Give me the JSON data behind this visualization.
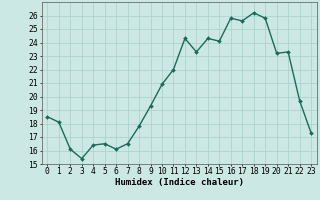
{
  "x": [
    0,
    1,
    2,
    3,
    4,
    5,
    6,
    7,
    8,
    9,
    10,
    11,
    12,
    13,
    14,
    15,
    16,
    17,
    18,
    19,
    20,
    21,
    22,
    23
  ],
  "y": [
    18.5,
    18.1,
    16.1,
    15.4,
    16.4,
    16.5,
    16.1,
    16.5,
    17.8,
    19.3,
    20.9,
    22.0,
    24.3,
    23.3,
    24.3,
    24.1,
    25.8,
    25.6,
    26.2,
    25.8,
    23.2,
    23.3,
    19.7,
    17.3
  ],
  "line_color": "#1a6b5a",
  "marker": "D",
  "marker_size": 2.0,
  "linewidth": 1.0,
  "xlabel": "Humidex (Indice chaleur)",
  "ylabel": "",
  "xlim": [
    -0.5,
    23.5
  ],
  "ylim": [
    15,
    27
  ],
  "yticks": [
    15,
    16,
    17,
    18,
    19,
    20,
    21,
    22,
    23,
    24,
    25,
    26
  ],
  "xticks": [
    0,
    1,
    2,
    3,
    4,
    5,
    6,
    7,
    8,
    9,
    10,
    11,
    12,
    13,
    14,
    15,
    16,
    17,
    18,
    19,
    20,
    21,
    22,
    23
  ],
  "bg_color": "#cce8e4",
  "grid_color": "#aacfcb",
  "label_fontsize": 6.5,
  "tick_fontsize": 5.8
}
